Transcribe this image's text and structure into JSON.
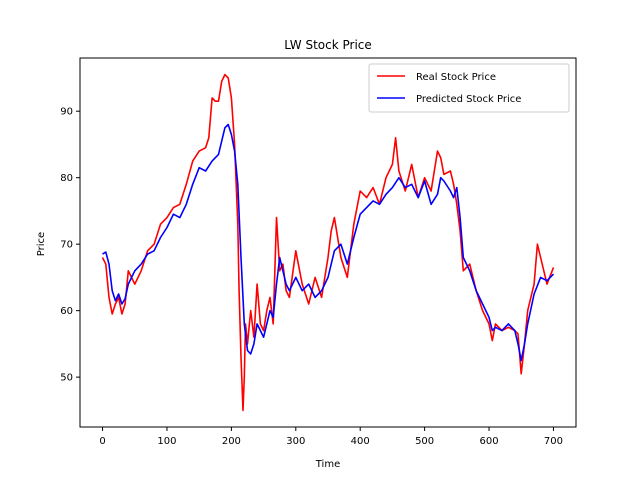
{
  "chart_data": {
    "type": "line",
    "title": "LW Stock Price",
    "xlabel": "Time",
    "ylabel": "Price",
    "xlim": [
      -35,
      735
    ],
    "ylim": [
      42.5,
      98.0
    ],
    "xticks": [
      0,
      100,
      200,
      300,
      400,
      500,
      600,
      700
    ],
    "yticks": [
      50,
      60,
      70,
      80,
      90
    ],
    "grid": false,
    "legend": "top-right",
    "series": [
      {
        "name": "Real Stock Price",
        "color": "#ff0000",
        "x": [
          0,
          5,
          10,
          15,
          20,
          25,
          30,
          35,
          40,
          50,
          60,
          70,
          80,
          90,
          100,
          110,
          120,
          130,
          140,
          150,
          160,
          165,
          170,
          175,
          180,
          185,
          190,
          195,
          200,
          205,
          210,
          212,
          215,
          218,
          220,
          222,
          225,
          230,
          235,
          240,
          245,
          250,
          255,
          260,
          265,
          270,
          275,
          280,
          285,
          290,
          300,
          310,
          320,
          330,
          340,
          350,
          355,
          360,
          370,
          380,
          390,
          400,
          410,
          420,
          430,
          440,
          450,
          455,
          460,
          470,
          480,
          490,
          500,
          510,
          520,
          525,
          530,
          540,
          545,
          550,
          555,
          560,
          570,
          580,
          590,
          600,
          605,
          610,
          620,
          630,
          640,
          645,
          650,
          655,
          660,
          670,
          675,
          680,
          690,
          700
        ],
        "values": [
          68.0,
          67.0,
          62.0,
          59.5,
          61.0,
          62.0,
          59.5,
          61.0,
          66.0,
          64.0,
          66.0,
          69.0,
          70.0,
          73.0,
          74.0,
          75.5,
          76.0,
          79.0,
          82.5,
          84.0,
          84.5,
          86.0,
          92.0,
          91.5,
          91.5,
          94.5,
          95.5,
          95.0,
          92.0,
          85.0,
          73.0,
          63.0,
          53.0,
          45.0,
          50.0,
          58.0,
          55.0,
          60.0,
          56.0,
          64.0,
          58.0,
          57.0,
          60.0,
          62.0,
          58.0,
          74.0,
          66.0,
          67.0,
          63.0,
          62.0,
          69.0,
          64.0,
          61.0,
          65.0,
          62.0,
          68.0,
          72.0,
          74.0,
          68.0,
          65.0,
          73.0,
          78.0,
          77.0,
          78.5,
          76.0,
          80.0,
          82.0,
          86.0,
          81.0,
          78.0,
          82.0,
          77.0,
          80.0,
          78.0,
          84.0,
          83.0,
          80.5,
          81.0,
          79.0,
          76.0,
          72.0,
          66.0,
          67.0,
          63.0,
          60.0,
          58.0,
          55.5,
          58.0,
          57.0,
          57.5,
          57.0,
          56.5,
          50.5,
          55.0,
          60.0,
          64.0,
          70.0,
          68.0,
          64.0,
          66.5
        ]
      },
      {
        "name": "Predicted Stock Price",
        "color": "#0000ff",
        "x": [
          0,
          5,
          10,
          15,
          20,
          25,
          30,
          35,
          40,
          50,
          60,
          70,
          80,
          90,
          100,
          110,
          120,
          130,
          140,
          150,
          160,
          170,
          180,
          185,
          190,
          195,
          200,
          205,
          210,
          215,
          220,
          225,
          230,
          235,
          240,
          245,
          250,
          255,
          260,
          265,
          270,
          275,
          280,
          285,
          290,
          300,
          310,
          320,
          330,
          340,
          350,
          355,
          360,
          370,
          380,
          390,
          400,
          410,
          420,
          430,
          440,
          450,
          460,
          470,
          480,
          490,
          500,
          510,
          520,
          525,
          530,
          540,
          545,
          550,
          555,
          560,
          570,
          580,
          590,
          600,
          605,
          610,
          620,
          630,
          640,
          645,
          650,
          655,
          660,
          670,
          680,
          690,
          700
        ],
        "values": [
          68.5,
          68.8,
          67.0,
          63.0,
          61.5,
          62.5,
          61.0,
          61.8,
          64.0,
          66.0,
          67.0,
          68.5,
          69.0,
          71.0,
          72.5,
          74.5,
          74.0,
          76.0,
          79.0,
          81.5,
          81.0,
          82.5,
          83.5,
          85.5,
          87.5,
          88.0,
          86.5,
          84.0,
          79.0,
          68.0,
          58.0,
          54.0,
          53.5,
          55.0,
          58.0,
          57.0,
          56.0,
          58.0,
          60.0,
          59.0,
          64.0,
          68.0,
          66.0,
          64.0,
          63.0,
          65.0,
          63.0,
          64.0,
          62.0,
          63.0,
          65.0,
          67.0,
          69.0,
          70.0,
          67.0,
          71.0,
          74.5,
          75.5,
          76.5,
          76.0,
          77.5,
          78.5,
          80.0,
          78.5,
          79.0,
          77.0,
          79.5,
          76.0,
          77.5,
          80.0,
          79.5,
          78.0,
          77.0,
          78.5,
          74.0,
          68.0,
          66.0,
          63.0,
          61.0,
          59.0,
          57.0,
          57.5,
          57.0,
          58.0,
          57.0,
          55.0,
          52.5,
          55.0,
          58.0,
          62.5,
          65.0,
          64.5,
          65.5
        ]
      }
    ]
  }
}
